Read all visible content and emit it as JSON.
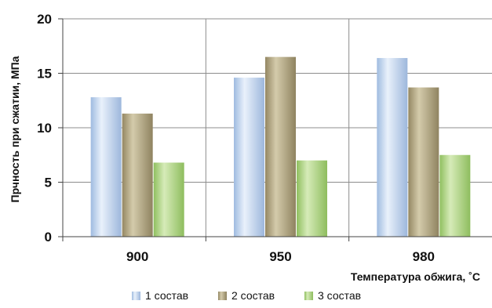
{
  "chart_data": {
    "type": "bar",
    "title": "",
    "xlabel": "Температура обжига, ˚С",
    "ylabel": "Прчность при сжатии, МПа",
    "categories": [
      "900",
      "950",
      "980"
    ],
    "ylim": [
      0,
      20
    ],
    "yticks": [
      0,
      5,
      10,
      15,
      20
    ],
    "grid": true,
    "legend_position": "bottom",
    "series": [
      {
        "name": "1 состав",
        "values": [
          12.8,
          14.6,
          16.4
        ],
        "color": "#c9dcf2"
      },
      {
        "name": "2 состав",
        "values": [
          11.3,
          16.5,
          13.7
        ],
        "color": "#b9ae8a"
      },
      {
        "name": "3 состав",
        "values": [
          6.8,
          7.0,
          7.5
        ],
        "color": "#b8d88f"
      }
    ]
  }
}
